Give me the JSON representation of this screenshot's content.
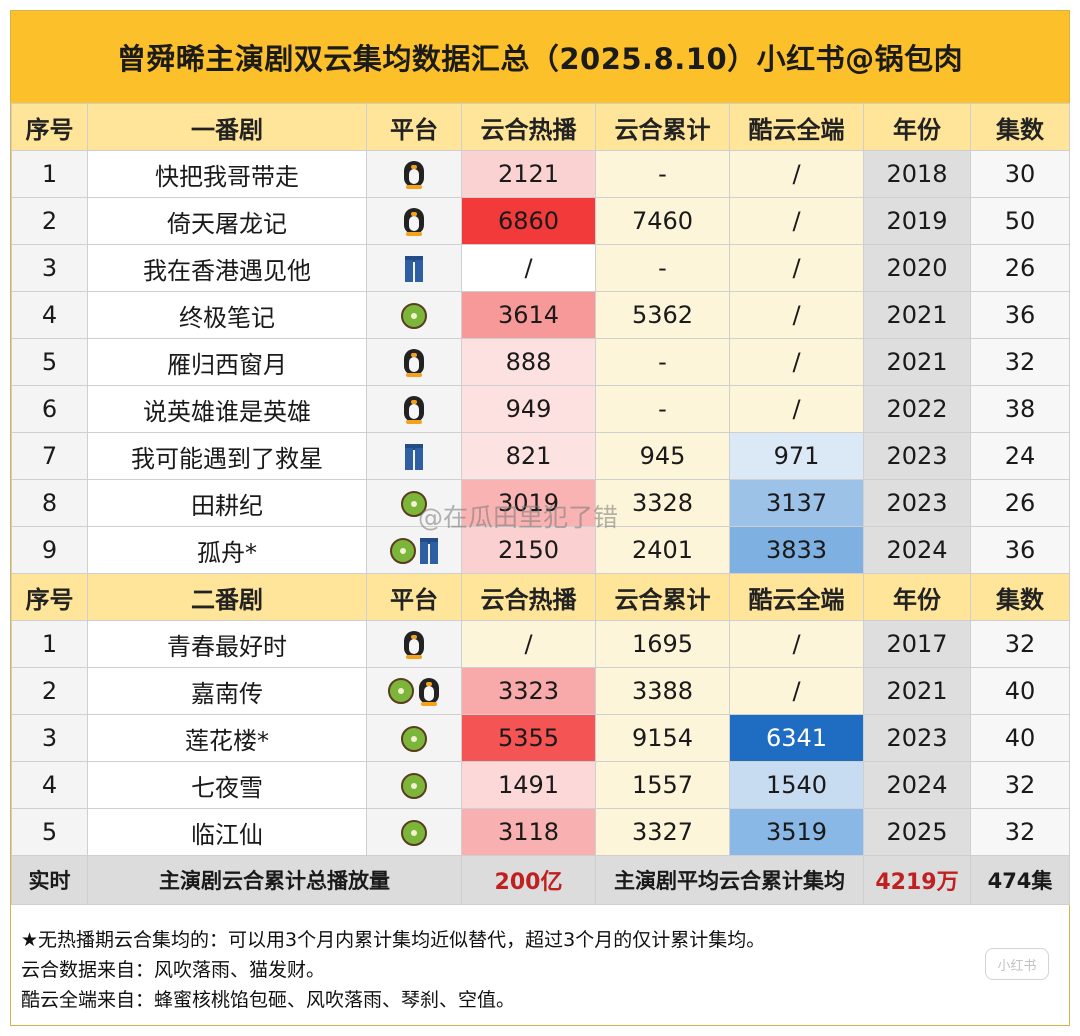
{
  "title": "曾舜晞主演剧双云集均数据汇总（2025.8.10）小红书@锅包肉",
  "headers_first": [
    "序号",
    "一番剧",
    "平台",
    "云合热播",
    "云合累计",
    "酷云全端",
    "年份",
    "集数"
  ],
  "headers_second": [
    "序号",
    "二番剧",
    "平台",
    "云合热播",
    "云合累计",
    "酷云全端",
    "年份",
    "集数"
  ],
  "first_rows": [
    {
      "seq": "1",
      "name": "快把我哥带走",
      "platforms": [
        "penguin-icon"
      ],
      "hot": "2121",
      "hot_color": "#fbd2d2",
      "acc": "-",
      "kuyun": "/",
      "kuyun_color": "#fdf5d9",
      "year": "2018",
      "eps": "30"
    },
    {
      "seq": "2",
      "name": "倚天屠龙记",
      "platforms": [
        "penguin-icon"
      ],
      "hot": "6860",
      "hot_color": "#f33a3a",
      "acc": "7460",
      "kuyun": "/",
      "kuyun_color": "#fdf5d9",
      "year": "2019",
      "eps": "50"
    },
    {
      "seq": "3",
      "name": "我在香港遇见他",
      "platforms": [
        "jeans-icon"
      ],
      "hot": "/",
      "hot_color": "#ffffff",
      "acc": "-",
      "kuyun": "/",
      "kuyun_color": "#fdf5d9",
      "year": "2020",
      "eps": "26"
    },
    {
      "seq": "4",
      "name": "终极笔记",
      "platforms": [
        "kiwi-icon"
      ],
      "hot": "3614",
      "hot_color": "#f79999",
      "acc": "5362",
      "kuyun": "/",
      "kuyun_color": "#fdf5d9",
      "year": "2021",
      "eps": "36"
    },
    {
      "seq": "5",
      "name": "雁归西窗月",
      "platforms": [
        "penguin-icon"
      ],
      "hot": "888",
      "hot_color": "#fde0e0",
      "acc": "-",
      "kuyun": "/",
      "kuyun_color": "#fdf5d9",
      "year": "2021",
      "eps": "32"
    },
    {
      "seq": "6",
      "name": "说英雄谁是英雄",
      "platforms": [
        "penguin-icon"
      ],
      "hot": "949",
      "hot_color": "#fde0e0",
      "acc": "-",
      "kuyun": "/",
      "kuyun_color": "#fdf5d9",
      "year": "2022",
      "eps": "38"
    },
    {
      "seq": "7",
      "name": "我可能遇到了救星",
      "platforms": [
        "jeans-icon"
      ],
      "hot": "821",
      "hot_color": "#fde2e2",
      "acc": "945",
      "kuyun": "971",
      "kuyun_color": "#dbe8f6",
      "year": "2023",
      "eps": "24"
    },
    {
      "seq": "8",
      "name": "田耕纪",
      "platforms": [
        "kiwi-icon"
      ],
      "hot": "3019",
      "hot_color": "#f9b3b3",
      "acc": "3328",
      "kuyun": "3137",
      "kuyun_color": "#9cc2e8",
      "year": "2023",
      "eps": "26"
    },
    {
      "seq": "9",
      "name": "孤舟*",
      "platforms": [
        "kiwi-icon",
        "jeans-icon"
      ],
      "hot": "2150",
      "hot_color": "#fbd0d0",
      "acc": "2401",
      "kuyun": "3833",
      "kuyun_color": "#7eb0e2",
      "year": "2024",
      "eps": "36"
    }
  ],
  "second_rows": [
    {
      "seq": "1",
      "name": "青春最好时",
      "platforms": [
        "penguin-icon"
      ],
      "hot": "/",
      "hot_color": "#fdf5d9",
      "acc": "1695",
      "kuyun": "/",
      "kuyun_color": "#fdf5d9",
      "year": "2017",
      "eps": "32"
    },
    {
      "seq": "2",
      "name": "嘉南传",
      "platforms": [
        "kiwi-icon",
        "penguin-icon"
      ],
      "hot": "3323",
      "hot_color": "#f8a9a9",
      "acc": "3388",
      "kuyun": "/",
      "kuyun_color": "#fdf5d9",
      "year": "2021",
      "eps": "40"
    },
    {
      "seq": "3",
      "name": "莲花楼*",
      "platforms": [
        "kiwi-icon"
      ],
      "hot": "5355",
      "hot_color": "#f45454",
      "acc": "9154",
      "kuyun": "6341",
      "kuyun_color": "#1f6dc2",
      "year": "2023",
      "eps": "40"
    },
    {
      "seq": "4",
      "name": "七夜雪",
      "platforms": [
        "kiwi-icon"
      ],
      "hot": "1491",
      "hot_color": "#fcd8d8",
      "acc": "1557",
      "kuyun": "1540",
      "kuyun_color": "#c7dbf1",
      "year": "2024",
      "eps": "32"
    },
    {
      "seq": "5",
      "name": "临江仙",
      "platforms": [
        "kiwi-icon"
      ],
      "hot": "3118",
      "hot_color": "#f9b0b0",
      "acc": "3327",
      "kuyun": "3519",
      "kuyun_color": "#8ab8e6",
      "year": "2025",
      "eps": "32"
    }
  ],
  "summary": {
    "label": "实时",
    "total_label": "主演剧云合累计总播放量",
    "total_value": "200亿",
    "avg_label": "主演剧平均云合累计集均",
    "avg_value": "4219万",
    "episodes": "474集"
  },
  "notes": [
    "★无热播期云合集均的：可以用3个月内累计集均近似替代，超过3个月的仅计累计集均。",
    "云合数据来自：风吹落雨、猫发财。",
    "酷云全端来自：蜂蜜核桃馅包砸、风吹落雨、琴刹、空值。"
  ],
  "watermark": "@在瓜田里犯了错",
  "corner_mark": "小红书"
}
